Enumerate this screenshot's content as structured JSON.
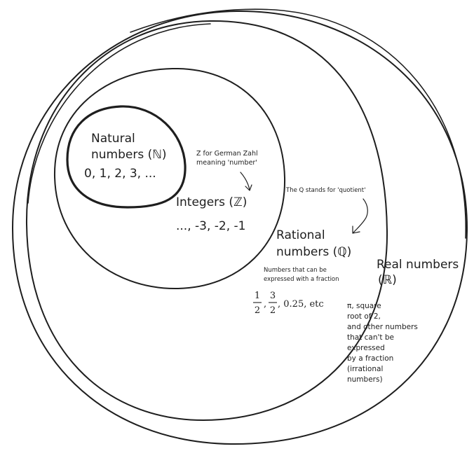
{
  "sets": {
    "natural": {
      "title_line1": "Natural",
      "title_line2": "numbers (ℕ)",
      "examples": "0, 1, 2, 3, ..."
    },
    "integers": {
      "title": "Integers (ℤ)",
      "examples": "..., -3, -2, -1",
      "note_line1": "Z for German Zahl",
      "note_line2": "meaning 'number'"
    },
    "rational": {
      "title_line1": "Rational",
      "title_line2": "numbers (ℚ)",
      "description_line1": "Numbers that can be",
      "description_line2": "expressed with a fraction",
      "note": "The Q stands for 'quotient'",
      "example_fraction1": {
        "numerator": "1",
        "denominator": "2"
      },
      "example_fraction2": {
        "numerator": "3",
        "denominator": "2"
      },
      "example_tail": ", 0.25, etc",
      "example_sep": ","
    },
    "real": {
      "title_line1": "Real numbers",
      "title_line2": "(ℝ)",
      "description_lines": [
        "π, square",
        "root of 2,",
        "and other numbers",
        "that can't be",
        "expressed",
        "by a fraction",
        "(irrational",
        "numbers)"
      ]
    }
  },
  "colors": {
    "ink": "#1e1e1e",
    "background": "#ffffff"
  }
}
